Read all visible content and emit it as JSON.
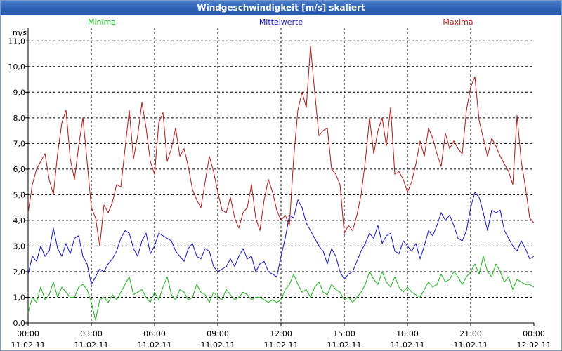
{
  "window": {
    "title": "Windgeschwindigkeit [m/s] skaliert"
  },
  "chart_data": {
    "type": "line",
    "title": "Windgeschwindigkeit [m/s] skaliert",
    "ylabel": "m/s",
    "xlabel": "",
    "ylim": [
      0,
      11.5
    ],
    "xlim_hours": [
      0,
      24
    ],
    "grid": true,
    "y_ticks": [
      "0,0",
      "1,0",
      "2,0",
      "3,0",
      "4,0",
      "5,0",
      "6,0",
      "7,0",
      "8,0",
      "9,0",
      "10,0",
      "11,0"
    ],
    "x_ticks": [
      {
        "time": "00:00",
        "date": "11.02.11"
      },
      {
        "time": "03:00",
        "date": "11.02.11"
      },
      {
        "time": "06:00",
        "date": "11.02.11"
      },
      {
        "time": "09:00",
        "date": "11.02.11"
      },
      {
        "time": "12:00",
        "date": "11.02.11"
      },
      {
        "time": "15:00",
        "date": "11.02.11"
      },
      {
        "time": "18:00",
        "date": "11.02.11"
      },
      {
        "time": "21:00",
        "date": "11.02.11"
      },
      {
        "time": "00:00",
        "date": "12.02.11"
      }
    ],
    "x_hours": [
      0,
      0.2,
      0.4,
      0.6,
      0.8,
      1,
      1.2,
      1.4,
      1.6,
      1.8,
      2,
      2.2,
      2.4,
      2.6,
      2.8,
      3,
      3.2,
      3.4,
      3.6,
      3.8,
      4,
      4.2,
      4.4,
      4.6,
      4.8,
      5,
      5.2,
      5.4,
      5.6,
      5.8,
      6,
      6.2,
      6.4,
      6.6,
      6.8,
      7,
      7.2,
      7.4,
      7.6,
      7.8,
      8,
      8.2,
      8.4,
      8.6,
      8.8,
      9,
      9.2,
      9.4,
      9.6,
      9.8,
      10,
      10.2,
      10.4,
      10.6,
      10.8,
      11,
      11.2,
      11.4,
      11.6,
      11.8,
      12,
      12.2,
      12.4,
      12.6,
      12.8,
      13,
      13.2,
      13.4,
      13.6,
      13.8,
      14,
      14.2,
      14.4,
      14.6,
      14.8,
      15,
      15.2,
      15.4,
      15.6,
      15.8,
      16,
      16.2,
      16.4,
      16.6,
      16.8,
      17,
      17.2,
      17.4,
      17.6,
      17.8,
      18,
      18.2,
      18.4,
      18.6,
      18.8,
      19,
      19.2,
      19.4,
      19.6,
      19.8,
      20,
      20.2,
      20.4,
      20.6,
      20.8,
      21,
      21.2,
      21.4,
      21.6,
      21.8,
      22,
      22.2,
      22.4,
      22.6,
      22.8,
      23,
      23.2,
      23.4,
      23.6,
      23.8,
      24
    ],
    "series": [
      {
        "name": "Minima",
        "color": "#21b021",
        "values": [
          0.4,
          1.0,
          0.8,
          1.4,
          0.9,
          1.1,
          1.6,
          1.0,
          1.4,
          1.2,
          1.0,
          1.0,
          1.4,
          1.5,
          1.3,
          0.8,
          0.1,
          0.9,
          1.0,
          0.8,
          1.1,
          0.9,
          1.2,
          1.5,
          1.8,
          1.1,
          1.2,
          1.3,
          1.0,
          0.8,
          1.2,
          0.9,
          1.4,
          1.8,
          1.1,
          0.9,
          1.3,
          1.2,
          0.9,
          1.0,
          1.5,
          1.2,
          1.1,
          0.8,
          1.2,
          1.0,
          0.9,
          1.3,
          1.1,
          0.9,
          1.0,
          1.2,
          1.1,
          0.9,
          1.0,
          1.0,
          0.9,
          0.8,
          0.9,
          0.8,
          0.9,
          1.3,
          1.5,
          1.9,
          1.5,
          1.2,
          1.3,
          1.0,
          1.4,
          1.6,
          1.2,
          1.1,
          1.5,
          1.3,
          1.2,
          0.9,
          1.0,
          0.8,
          1.0,
          1.2,
          1.5,
          2.0,
          1.7,
          1.5,
          2.0,
          1.6,
          1.4,
          1.8,
          1.4,
          1.2,
          1.4,
          1.2,
          1.1,
          1.0,
          1.3,
          1.6,
          1.4,
          1.5,
          1.9,
          1.6,
          1.7,
          2.0,
          1.8,
          1.5,
          1.8,
          2.0,
          2.3,
          1.9,
          2.6,
          2.0,
          1.8,
          2.3,
          2.0,
          1.6,
          1.8,
          1.3,
          1.7,
          1.6,
          1.5,
          1.5,
          1.4
        ]
      },
      {
        "name": "Mittelwerte",
        "color": "#1414c4",
        "values": [
          1.9,
          2.6,
          2.4,
          3.0,
          2.6,
          2.8,
          3.7,
          2.9,
          2.6,
          3.1,
          2.7,
          3.3,
          3.4,
          2.6,
          2.3,
          1.5,
          1.8,
          2.1,
          2.0,
          2.3,
          2.5,
          2.8,
          3.3,
          3.6,
          3.5,
          2.9,
          2.6,
          3.2,
          3.5,
          2.7,
          3.0,
          3.5,
          3.4,
          3.3,
          3.2,
          2.8,
          2.6,
          2.4,
          2.9,
          3.1,
          2.6,
          2.5,
          2.9,
          2.8,
          2.2,
          2.0,
          2.1,
          2.2,
          2.5,
          2.2,
          2.6,
          2.9,
          2.5,
          2.6,
          2.0,
          2.3,
          2.4,
          2.0,
          1.9,
          1.8,
          2.6,
          3.3,
          4.2,
          4.1,
          4.8,
          4.5,
          3.9,
          3.6,
          3.3,
          3.0,
          2.8,
          2.3,
          2.9,
          2.6,
          2.0,
          1.7,
          1.9,
          2.0,
          2.4,
          2.8,
          3.1,
          3.5,
          3.3,
          3.8,
          3.1,
          3.4,
          3.5,
          2.8,
          2.7,
          3.2,
          3.0,
          2.8,
          3.1,
          2.5,
          3.0,
          3.6,
          3.4,
          3.8,
          4.3,
          4.0,
          4.2,
          3.8,
          3.3,
          3.2,
          3.6,
          4.5,
          5.1,
          4.9,
          4.3,
          3.6,
          4.4,
          4.3,
          4.4,
          3.6,
          3.3,
          3.0,
          2.8,
          3.2,
          2.9,
          2.5,
          2.6
        ]
      },
      {
        "name": "Maxima",
        "color": "#b01818",
        "values": [
          4.3,
          5.4,
          6.0,
          6.3,
          6.6,
          5.6,
          5.0,
          6.6,
          7.8,
          8.3,
          6.4,
          5.6,
          6.9,
          8.0,
          6.3,
          4.5,
          4.1,
          3.0,
          4.6,
          4.3,
          4.7,
          5.4,
          5.3,
          6.8,
          8.3,
          6.4,
          7.3,
          8.6,
          7.6,
          6.3,
          5.8,
          7.8,
          8.2,
          6.3,
          6.8,
          7.6,
          6.5,
          6.8,
          6.1,
          5.2,
          4.8,
          4.5,
          5.5,
          6.5,
          5.9,
          5.1,
          4.4,
          4.3,
          4.9,
          4.1,
          3.7,
          4.3,
          4.5,
          5.4,
          4.1,
          3.6,
          4.8,
          5.6,
          5.1,
          4.4,
          4.0,
          4.2,
          3.8,
          6.4,
          8.3,
          9.0,
          8.4,
          10.8,
          9.0,
          7.3,
          7.5,
          7.6,
          6.0,
          5.8,
          5.4,
          3.5,
          3.8,
          3.6,
          4.2,
          5.0,
          6.3,
          8.0,
          6.6,
          7.5,
          8.0,
          6.9,
          8.4,
          5.8,
          5.9,
          5.6,
          5.1,
          5.5,
          6.2,
          7.1,
          6.5,
          7.6,
          7.2,
          6.6,
          6.1,
          7.4,
          6.8,
          7.1,
          6.8,
          6.6,
          8.3,
          9.2,
          9.6,
          7.9,
          7.2,
          6.5,
          7.2,
          6.9,
          6.5,
          6.2,
          5.9,
          5.4,
          8.1,
          6.3,
          5.3,
          4.1,
          3.9
        ]
      }
    ]
  }
}
